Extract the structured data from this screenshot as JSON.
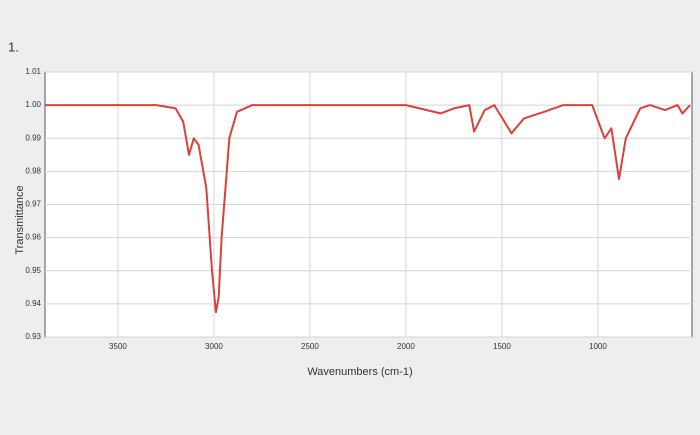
{
  "chart_data": {
    "type": "line",
    "annotation": "1.",
    "x_label": "Wavenumbers (cm-1)",
    "y_label": "Transmittance",
    "color": "#d9413a",
    "x": [
      3880,
      3300,
      3200,
      3160,
      3130,
      3105,
      3080,
      3040,
      3010,
      2990,
      2975,
      2960,
      2940,
      2920,
      2880,
      2800,
      2200,
      2000,
      1820,
      1750,
      1670,
      1645,
      1590,
      1540,
      1450,
      1385,
      1280,
      1180,
      1030,
      965,
      930,
      890,
      855,
      780,
      730,
      650,
      585,
      560,
      520
    ],
    "values": [
      1.0,
      1.0,
      0.999,
      0.995,
      0.985,
      0.99,
      0.988,
      0.975,
      0.95,
      0.9375,
      0.942,
      0.96,
      0.975,
      0.99,
      0.998,
      1.0,
      1.0,
      1.0,
      0.9975,
      0.999,
      1.0,
      0.992,
      0.9985,
      1.0,
      0.9915,
      0.996,
      0.998,
      1.0,
      1.0,
      0.99,
      0.993,
      0.9777,
      0.99,
      0.999,
      1.0,
      0.9985,
      1.0,
      0.9975,
      1.0
    ],
    "xlim": [
      3880,
      510
    ],
    "ylim": [
      0.93,
      1.01
    ],
    "xticks": [
      3500,
      3000,
      2500,
      2000,
      1500,
      1000
    ],
    "yticks": [
      0.93,
      0.94,
      0.95,
      0.96,
      0.97,
      0.98,
      0.99,
      {
        "value": 1,
        "label": "1.00"
      },
      1.01
    ],
    "grid": true
  }
}
